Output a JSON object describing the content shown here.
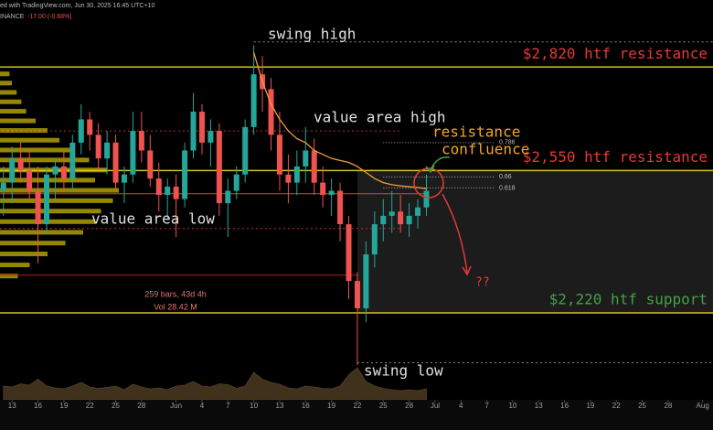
{
  "chart_data": {
    "type": "candlestick",
    "header": {
      "source": "ed with TradingView.com, Jun 30, 2025 16:45 UTC+10",
      "exchange": "INANCE",
      "change": "-17.00 (-0.68%)"
    },
    "x": [
      -1,
      0,
      1,
      2,
      3,
      4,
      5,
      6,
      7,
      8,
      9,
      10,
      11,
      12,
      13,
      14,
      15,
      16,
      17,
      18,
      19,
      20,
      21,
      22,
      23,
      24,
      25,
      26,
      27,
      28,
      29,
      30,
      31,
      32,
      33,
      34,
      35,
      36,
      37,
      38,
      39,
      40,
      41,
      42,
      43,
      44,
      45,
      46,
      47,
      48
    ],
    "ohlc": [
      [
        2500,
        2560,
        2440,
        2520
      ],
      [
        2520,
        2610,
        2470,
        2580
      ],
      [
        2580,
        2620,
        2520,
        2550
      ],
      [
        2550,
        2600,
        2480,
        2500
      ],
      [
        2500,
        2560,
        2330,
        2420
      ],
      [
        2420,
        2560,
        2400,
        2540
      ],
      [
        2540,
        2580,
        2480,
        2560
      ],
      [
        2560,
        2600,
        2500,
        2530
      ],
      [
        2530,
        2640,
        2500,
        2620
      ],
      [
        2620,
        2720,
        2590,
        2680
      ],
      [
        2680,
        2700,
        2600,
        2640
      ],
      [
        2640,
        2670,
        2550,
        2580
      ],
      [
        2580,
        2650,
        2540,
        2620
      ],
      [
        2620,
        2640,
        2500,
        2520
      ],
      [
        2520,
        2560,
        2470,
        2540
      ],
      [
        2540,
        2700,
        2520,
        2650
      ],
      [
        2650,
        2700,
        2570,
        2600
      ],
      [
        2600,
        2640,
        2510,
        2530
      ],
      [
        2530,
        2570,
        2450,
        2490
      ],
      [
        2490,
        2530,
        2430,
        2510
      ],
      [
        2510,
        2540,
        2390,
        2480
      ],
      [
        2480,
        2620,
        2460,
        2600
      ],
      [
        2600,
        2750,
        2580,
        2700
      ],
      [
        2700,
        2720,
        2590,
        2620
      ],
      [
        2620,
        2680,
        2560,
        2650
      ],
      [
        2650,
        2670,
        2440,
        2470
      ],
      [
        2470,
        2530,
        2390,
        2500
      ],
      [
        2500,
        2560,
        2480,
        2540
      ],
      [
        2540,
        2680,
        2520,
        2660
      ],
      [
        2660,
        2880,
        2640,
        2800
      ],
      [
        2800,
        2850,
        2700,
        2760
      ],
      [
        2760,
        2790,
        2600,
        2640
      ],
      [
        2640,
        2700,
        2500,
        2540
      ],
      [
        2540,
        2590,
        2470,
        2520
      ],
      [
        2520,
        2600,
        2490,
        2560
      ],
      [
        2560,
        2660,
        2520,
        2600
      ],
      [
        2600,
        2630,
        2490,
        2520
      ],
      [
        2520,
        2560,
        2460,
        2490
      ],
      [
        2490,
        2530,
        2440,
        2500
      ],
      [
        2500,
        2520,
        2380,
        2420
      ],
      [
        2420,
        2440,
        2250,
        2290
      ],
      [
        2290,
        2310,
        2110,
        2230
      ],
      [
        2230,
        2380,
        2200,
        2350
      ],
      [
        2350,
        2450,
        2320,
        2420
      ],
      [
        2420,
        2480,
        2380,
        2440
      ],
      [
        2440,
        2500,
        2400,
        2450
      ],
      [
        2450,
        2490,
        2400,
        2420
      ],
      [
        2420,
        2470,
        2390,
        2440
      ],
      [
        2440,
        2480,
        2410,
        2460
      ],
      [
        2460,
        2540,
        2440,
        2500
      ]
    ],
    "up_color": "#26a69a",
    "down_color": "#ef5350",
    "ma": {
      "color": "#f39c3c",
      "x": [
        28,
        29,
        30,
        31,
        32,
        33,
        34,
        35,
        36,
        37,
        38,
        39,
        40,
        41,
        42,
        43,
        44,
        45,
        46,
        47,
        48
      ],
      "values": [
        2860,
        2780,
        2720,
        2680,
        2650,
        2630,
        2620,
        2600,
        2590,
        2580,
        2575,
        2570,
        2560,
        2545,
        2530,
        2520,
        2515,
        2512,
        2510,
        2508,
        2505
      ]
    },
    "volume": {
      "color": "#8d6e3f",
      "values": [
        30,
        28,
        35,
        32,
        45,
        30,
        26,
        24,
        30,
        38,
        28,
        25,
        27,
        30,
        22,
        34,
        28,
        24,
        26,
        22,
        30,
        32,
        40,
        30,
        28,
        35,
        33,
        25,
        30,
        60,
        45,
        38,
        34,
        26,
        24,
        30,
        28,
        25,
        24,
        30,
        55,
        70,
        40,
        30,
        25,
        22,
        20,
        22,
        20,
        24
      ]
    },
    "volume_profile": {
      "color": "#c8b400",
      "prices": [
        2300,
        2325,
        2350,
        2375,
        2400,
        2425,
        2450,
        2475,
        2500,
        2525,
        2550,
        2575,
        2600,
        2625,
        2650,
        2675,
        2700,
        2725,
        2750,
        2775,
        2800
      ],
      "values": [
        15,
        25,
        40,
        55,
        70,
        80,
        85,
        95,
        100,
        80,
        90,
        75,
        60,
        50,
        40,
        30,
        22,
        18,
        14,
        10,
        8
      ]
    },
    "ylim": [
      2040,
      3010
    ],
    "log_scale": true,
    "xlim": [
      -1.4,
      81.2
    ],
    "xticks": [
      {
        "value": 0,
        "label": "13"
      },
      {
        "value": 3,
        "label": "16"
      },
      {
        "value": 6,
        "label": "19"
      },
      {
        "value": 9,
        "label": "22"
      },
      {
        "value": 12,
        "label": "25"
      },
      {
        "value": 15,
        "label": "28"
      },
      {
        "value": 19,
        "label": "Jun"
      },
      {
        "value": 22,
        "label": "4"
      },
      {
        "value": 25,
        "label": "7"
      },
      {
        "value": 28,
        "label": "10"
      },
      {
        "value": 31,
        "label": "13"
      },
      {
        "value": 34,
        "label": "16"
      },
      {
        "value": 37,
        "label": "19"
      },
      {
        "value": 40,
        "label": "22"
      },
      {
        "value": 43,
        "label": "25"
      },
      {
        "value": 46,
        "label": "28"
      },
      {
        "value": 49,
        "label": "Jul"
      },
      {
        "value": 52,
        "label": "4"
      },
      {
        "value": 55,
        "label": "7"
      },
      {
        "value": 58,
        "label": "10"
      },
      {
        "value": 61,
        "label": "13"
      },
      {
        "value": 64,
        "label": "16"
      },
      {
        "value": 67,
        "label": "19"
      },
      {
        "value": 70,
        "label": "22"
      },
      {
        "value": 73,
        "label": "25"
      },
      {
        "value": 76,
        "label": "28"
      },
      {
        "value": 80,
        "label": "Aug"
      }
    ],
    "levels": [
      {
        "value": 2820,
        "label": "$2,820 htf resistance",
        "color": "#e53935"
      },
      {
        "value": 2550,
        "label": "$2,550 htf resistance",
        "color": "#e53935"
      },
      {
        "value": 2220,
        "label": "$2,220 htf support",
        "color": "#43a047"
      }
    ],
    "level_color": "#d4c21a",
    "lines": [
      {
        "value": 2650,
        "to": 45,
        "color": "#c62828",
        "style": "dotted"
      },
      {
        "value": 2410,
        "to": 45,
        "color": "#c62828",
        "style": "dotted"
      },
      {
        "value": 2493,
        "to": 48,
        "color": "#e53935",
        "style": "solid"
      },
      {
        "value": 2303,
        "to": 40,
        "color": "#b71c1c",
        "style": "solid"
      },
      {
        "value": 2890,
        "from": 28,
        "color": "#888",
        "style": "dotted"
      },
      {
        "value": 2115,
        "from": 40,
        "color": "#888",
        "style": "dotted"
      }
    ],
    "fib": [
      {
        "value": 2620,
        "label": "0.786"
      },
      {
        "value": 2534,
        "label": "0.66"
      },
      {
        "value": 2507,
        "label": "0.618"
      }
    ],
    "box": {
      "from": 40,
      "top": 2550,
      "bottom": 2220
    },
    "annotations": {
      "swing_high": "swing high",
      "value_area_high": "value area high",
      "value_area_low": "value area low",
      "resistance": "resistance",
      "confluence": "confluence",
      "swing_low": "swing low",
      "question": "??"
    },
    "stats": {
      "bars": "259 bars, 43d 4h",
      "vol": "Vol 28.42 M"
    }
  }
}
